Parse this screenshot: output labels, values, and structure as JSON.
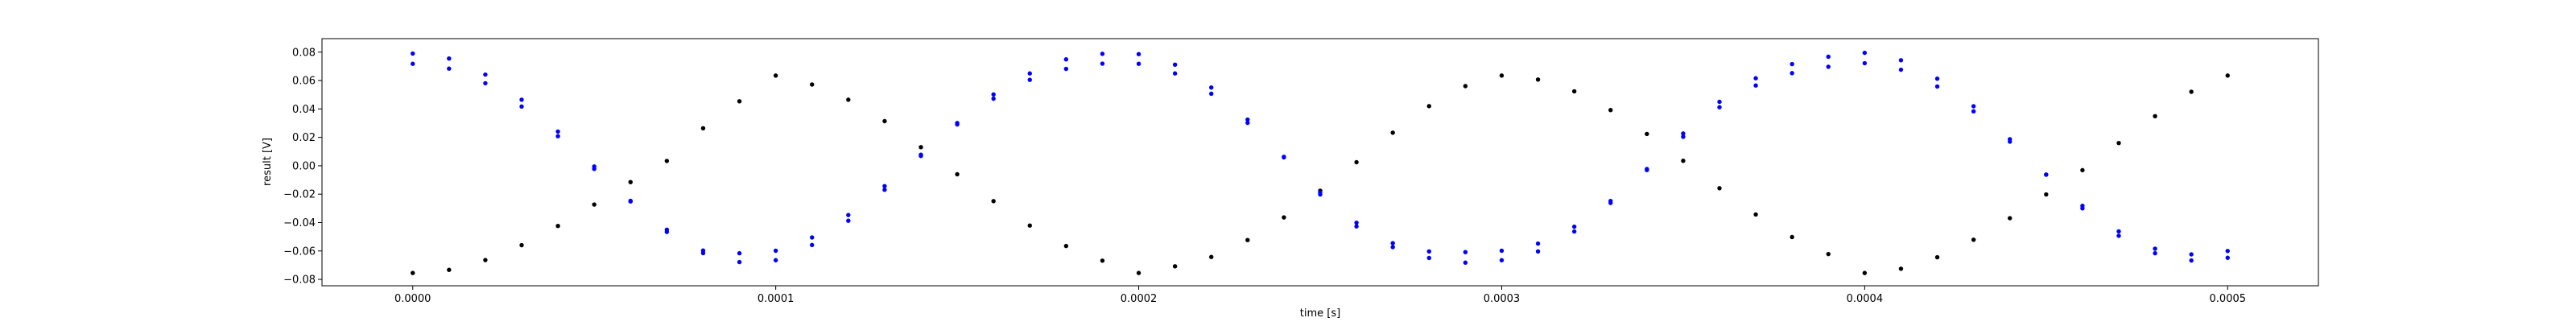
{
  "chart_data": {
    "type": "scatter",
    "title": "",
    "xlabel": "time [s]",
    "ylabel": "result [V]",
    "xlim": [
      -2.5e-05,
      0.000525
    ],
    "ylim": [
      -0.0845,
      0.0895
    ],
    "x_tick_labels": [
      {
        "value": 0.0,
        "label": "0.0000"
      },
      {
        "value": 0.0001,
        "label": "0.0001"
      },
      {
        "value": 0.0002,
        "label": "0.0002"
      },
      {
        "value": 0.0003,
        "label": "0.0003"
      },
      {
        "value": 0.0004,
        "label": "0.0004"
      },
      {
        "value": 0.0005,
        "label": "0.0005"
      }
    ],
    "y_tick_labels": [
      {
        "value": -0.08,
        "label": "−0.08"
      },
      {
        "value": -0.06,
        "label": "−0.06"
      },
      {
        "value": -0.04,
        "label": "−0.04"
      },
      {
        "value": -0.02,
        "label": "−0.02"
      },
      {
        "value": 0.0,
        "label": "0.00"
      },
      {
        "value": 0.02,
        "label": "0.02"
      },
      {
        "value": 0.04,
        "label": "0.04"
      },
      {
        "value": 0.06,
        "label": "0.06"
      },
      {
        "value": 0.08,
        "label": "0.08"
      }
    ],
    "grid": false,
    "legend": false,
    "series": [
      {
        "color": "#000000",
        "marker": "dot",
        "x": [
          0.0,
          1e-05,
          2e-05,
          3e-05,
          4e-05,
          5e-05,
          6e-05,
          7e-05,
          8e-05,
          9e-05,
          0.0001,
          0.00011,
          0.00012,
          0.00013,
          0.00014,
          0.00015,
          0.00016,
          0.00017,
          0.00018,
          0.00019,
          0.0002,
          0.00021,
          0.00022,
          0.00023,
          0.00024,
          0.00025,
          0.00026,
          0.00027,
          0.00028,
          0.00029,
          0.0003,
          0.00031,
          0.00032,
          0.00033,
          0.00034,
          0.00035,
          0.00036,
          0.00037,
          0.00038,
          0.00039,
          0.0004,
          0.00041,
          0.00042,
          0.00043,
          0.00044,
          0.00045,
          0.00046,
          0.00047,
          0.00048,
          0.00049,
          0.0005
        ],
        "y": [
          -0.0755,
          -0.0733,
          -0.0664,
          -0.0559,
          -0.0424,
          -0.0273,
          -0.0115,
          0.0034,
          0.0264,
          0.0454,
          0.0635,
          0.0572,
          0.0465,
          0.0314,
          0.0131,
          -0.006,
          -0.0249,
          -0.0421,
          -0.0565,
          -0.0668,
          -0.0755,
          -0.0708,
          -0.0642,
          -0.0523,
          -0.0364,
          -0.0176,
          0.0025,
          0.0233,
          0.042,
          0.0561,
          0.0635,
          0.0607,
          0.0524,
          0.0392,
          0.0224,
          0.0035,
          -0.0158,
          -0.0343,
          -0.0502,
          -0.0622,
          -0.0755,
          -0.0725,
          -0.0644,
          -0.0521,
          -0.0369,
          -0.0202,
          -0.0031,
          0.016,
          0.0349,
          0.0521,
          0.0635
        ]
      },
      {
        "color": "#0000ff",
        "marker": "dot",
        "x": [
          0.0,
          1e-05,
          2e-05,
          3e-05,
          4e-05,
          5e-05,
          6e-05,
          7e-05,
          8e-05,
          9e-05,
          0.0001,
          0.00011,
          0.00012,
          0.00013,
          0.00014,
          0.00015,
          0.00016,
          0.00017,
          0.00018,
          0.00019,
          0.0002,
          0.00021,
          0.00022,
          0.00023,
          0.00024,
          0.00025,
          0.00026,
          0.00027,
          0.00028,
          0.00029,
          0.0003,
          0.00031,
          0.00032,
          0.00033,
          0.00034,
          0.00035,
          0.00036,
          0.00037,
          0.00038,
          0.00039,
          0.0004,
          0.00041,
          0.00042,
          0.00043,
          0.00044,
          0.00045,
          0.00046,
          0.00047,
          0.00048,
          0.00049,
          0.0005
        ],
        "y": [
          0.079,
          0.0755,
          0.0642,
          0.0465,
          0.0241,
          -0.0005,
          -0.0251,
          -0.0466,
          -0.0615,
          -0.0678,
          -0.0665,
          -0.0558,
          -0.0387,
          -0.0169,
          0.0069,
          0.0301,
          0.0502,
          0.065,
          0.0749,
          0.0788,
          0.0786,
          0.0712,
          0.0551,
          0.0325,
          0.0063,
          -0.0202,
          -0.0427,
          -0.0573,
          -0.0649,
          -0.0682,
          -0.0665,
          -0.0603,
          -0.0463,
          -0.0262,
          -0.0023,
          0.0227,
          0.045,
          0.0616,
          0.0716,
          0.0768,
          0.0795,
          0.0743,
          0.0613,
          0.0419,
          0.0187,
          -0.0063,
          -0.03,
          -0.0493,
          -0.0616,
          -0.0667,
          -0.0648
        ]
      },
      {
        "color": "#0000ff",
        "marker": "dot",
        "x": [
          0.0,
          1e-05,
          2e-05,
          3e-05,
          4e-05,
          5e-05,
          6e-05,
          7e-05,
          8e-05,
          9e-05,
          0.0001,
          0.00011,
          0.00012,
          0.00013,
          0.00014,
          0.00015,
          0.00016,
          0.00017,
          0.00018,
          0.00019,
          0.0002,
          0.00021,
          0.00022,
          0.00023,
          0.00024,
          0.00025,
          0.00026,
          0.00027,
          0.00028,
          0.00029,
          0.0003,
          0.00031,
          0.00032,
          0.00033,
          0.00034,
          0.00035,
          0.00036,
          0.00037,
          0.00038,
          0.00039,
          0.0004,
          0.00041,
          0.00042,
          0.00043,
          0.00044,
          0.00045,
          0.00046,
          0.00047,
          0.00048,
          0.00049,
          0.0005
        ],
        "y": [
          0.0718,
          0.0684,
          0.0581,
          0.0417,
          0.0208,
          -0.0022,
          -0.0247,
          -0.045,
          -0.0597,
          -0.0616,
          -0.0598,
          -0.0505,
          -0.0347,
          -0.0143,
          0.0078,
          0.0291,
          0.0472,
          0.0605,
          0.0682,
          0.0719,
          0.0718,
          0.065,
          0.0507,
          0.0302,
          0.0059,
          -0.0188,
          -0.0401,
          -0.0545,
          -0.0603,
          -0.0608,
          -0.0598,
          -0.0548,
          -0.0429,
          -0.0248,
          -0.003,
          0.0204,
          0.0412,
          0.0565,
          0.0652,
          0.0697,
          0.0722,
          0.0676,
          0.0558,
          0.0383,
          0.017,
          -0.0062,
          -0.0282,
          -0.0462,
          -0.0584,
          -0.0624,
          -0.06
        ]
      }
    ]
  }
}
